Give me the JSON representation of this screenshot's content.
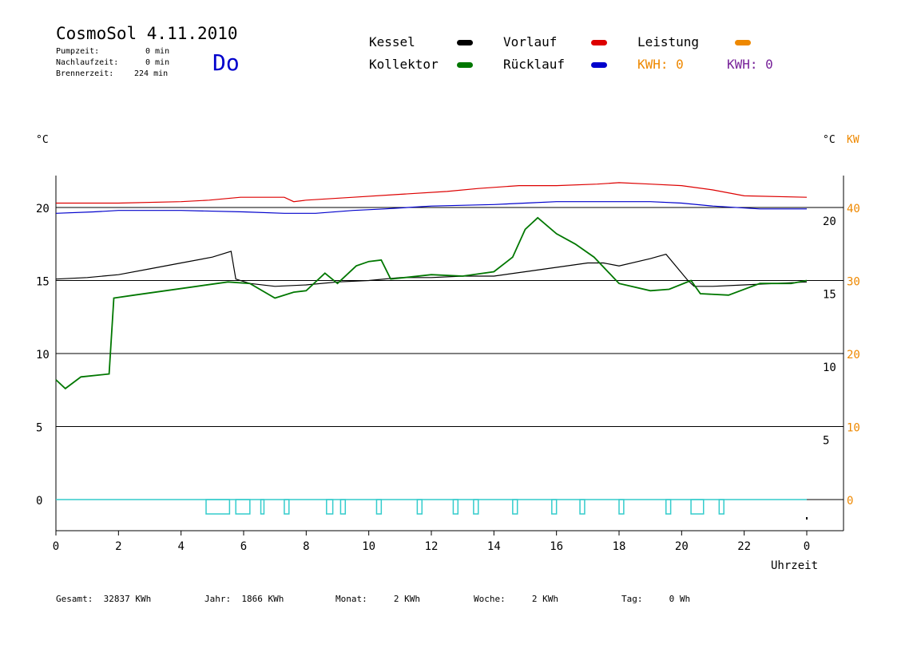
{
  "header": {
    "title": "CosmoSol 4.11.2010",
    "stats": [
      {
        "label": "Pumpzeit:",
        "value": "0 min"
      },
      {
        "label": "Nachlaufzeit:",
        "value": "0 min"
      },
      {
        "label": "Brennerzeit:",
        "value": "224 min"
      }
    ],
    "day": "Do"
  },
  "legend": {
    "kessel": {
      "label": "Kessel",
      "color": "#000000"
    },
    "kollektor": {
      "label": "Kollektor",
      "color": "#007700"
    },
    "vorlauf": {
      "label": "Vorlauf",
      "color": "#dd0000"
    },
    "ruecklauf": {
      "label": "Rücklauf",
      "color": "#0000cc"
    },
    "leistung": {
      "label": "Leistung",
      "color": "#ee8800"
    },
    "kwh_orange": "KWH: 0",
    "kwh_purple": "KWH: 0",
    "kwh_purple_color": "#772299"
  },
  "axes": {
    "left_unit": "°C",
    "right_unit": "°C",
    "right_unit2": "KW",
    "xlabel": "Uhrzeit"
  },
  "footer": {
    "gesamt": "Gesamt:  32837 KWh",
    "jahr": "Jahr:  1866 KWh",
    "monat": "Monat:     2 KWh",
    "woche": "Woche:     2 KWh",
    "tag": "Tag:     0 Wh"
  },
  "chart_data": {
    "type": "line",
    "title": "CosmoSol 4.11.2010",
    "xlabel": "Uhrzeit",
    "ylabel": "°C",
    "xlim": [
      0,
      24
    ],
    "ylim": [
      -2,
      23
    ],
    "x_tick_labels": [
      "0",
      "2",
      "4",
      "6",
      "8",
      "10",
      "12",
      "14",
      "16",
      "18",
      "20",
      "22",
      "0"
    ],
    "y_left_ticks": [
      0,
      5,
      10,
      15,
      20
    ],
    "y_right_temp_ticks": [
      5,
      10,
      15,
      20
    ],
    "y_right_kw_ticks": [
      0,
      10,
      20,
      30,
      40
    ],
    "grid": "horizontal",
    "series": [
      {
        "name": "Vorlauf",
        "color": "#dd0000",
        "x": [
          0,
          2,
          4,
          4.9,
          5.9,
          7.3,
          7.6,
          8,
          9.5,
          11,
          12.5,
          13.5,
          14.8,
          16,
          17.3,
          18,
          19,
          20,
          21,
          22,
          24
        ],
        "y": [
          20.3,
          20.3,
          20.4,
          20.5,
          20.7,
          20.7,
          20.4,
          20.5,
          20.7,
          20.9,
          21.1,
          21.3,
          21.5,
          21.5,
          21.6,
          21.7,
          21.6,
          21.5,
          21.2,
          20.8,
          20.7
        ]
      },
      {
        "name": "Rücklauf",
        "color": "#0000cc",
        "x": [
          0,
          1.2,
          2,
          4,
          6,
          7.3,
          8.3,
          9.5,
          10.5,
          12,
          14,
          15,
          16,
          17.5,
          19,
          20,
          21,
          22.5,
          24
        ],
        "y": [
          19.6,
          19.7,
          19.8,
          19.8,
          19.7,
          19.6,
          19.6,
          19.8,
          19.9,
          20.1,
          20.2,
          20.3,
          20.4,
          20.4,
          20.4,
          20.3,
          20.1,
          19.9,
          19.9
        ]
      },
      {
        "name": "Kessel",
        "color": "#000000",
        "x": [
          0,
          1,
          2,
          3,
          4,
          5,
          5.6,
          5.75,
          6.2,
          7,
          8,
          9,
          10,
          11,
          12,
          13,
          14,
          15,
          16,
          17,
          17.5,
          18,
          19,
          19.5,
          20.2,
          20.4,
          21,
          22,
          23,
          24
        ],
        "y": [
          15.1,
          15.2,
          15.4,
          15.8,
          16.2,
          16.6,
          17.0,
          15.1,
          14.8,
          14.6,
          14.7,
          14.9,
          15.0,
          15.2,
          15.2,
          15.3,
          15.3,
          15.6,
          15.9,
          16.2,
          16.2,
          16.0,
          16.5,
          16.8,
          15.0,
          14.6,
          14.6,
          14.7,
          14.8,
          14.9
        ]
      },
      {
        "name": "Kollektor",
        "color": "#007700",
        "x": [
          0,
          0.3,
          0.8,
          1.7,
          1.85,
          2.5,
          3.5,
          4.5,
          5.5,
          6.2,
          7,
          7.6,
          8,
          8.6,
          9,
          9.6,
          10,
          10.4,
          10.7,
          12,
          13,
          14,
          14.6,
          15,
          15.4,
          16,
          16.6,
          17.2,
          18,
          19,
          19.6,
          20.3,
          20.6,
          21.5,
          22.5,
          23.5,
          24
        ],
        "y": [
          8.2,
          7.6,
          8.4,
          8.6,
          13.8,
          14.0,
          14.3,
          14.6,
          14.9,
          14.8,
          13.8,
          14.2,
          14.3,
          15.5,
          14.8,
          16.0,
          16.3,
          16.4,
          15.1,
          15.4,
          15.3,
          15.6,
          16.6,
          18.5,
          19.3,
          18.2,
          17.5,
          16.6,
          14.8,
          14.3,
          14.4,
          15.0,
          14.1,
          14.0,
          14.8,
          14.8,
          15.0
        ]
      }
    ],
    "pump_pulses": [
      [
        4.8,
        5.55
      ],
      [
        5.75,
        6.2
      ],
      [
        6.55,
        6.65
      ],
      [
        7.3,
        7.45
      ],
      [
        8.65,
        8.85
      ],
      [
        9.1,
        9.25
      ],
      [
        10.25,
        10.4
      ],
      [
        11.55,
        11.7
      ],
      [
        12.7,
        12.85
      ],
      [
        13.35,
        13.5
      ],
      [
        14.6,
        14.75
      ],
      [
        15.85,
        16.0
      ],
      [
        16.75,
        16.9
      ],
      [
        18.0,
        18.15
      ],
      [
        19.5,
        19.65
      ],
      [
        20.3,
        20.7
      ],
      [
        21.2,
        21.35
      ]
    ]
  }
}
